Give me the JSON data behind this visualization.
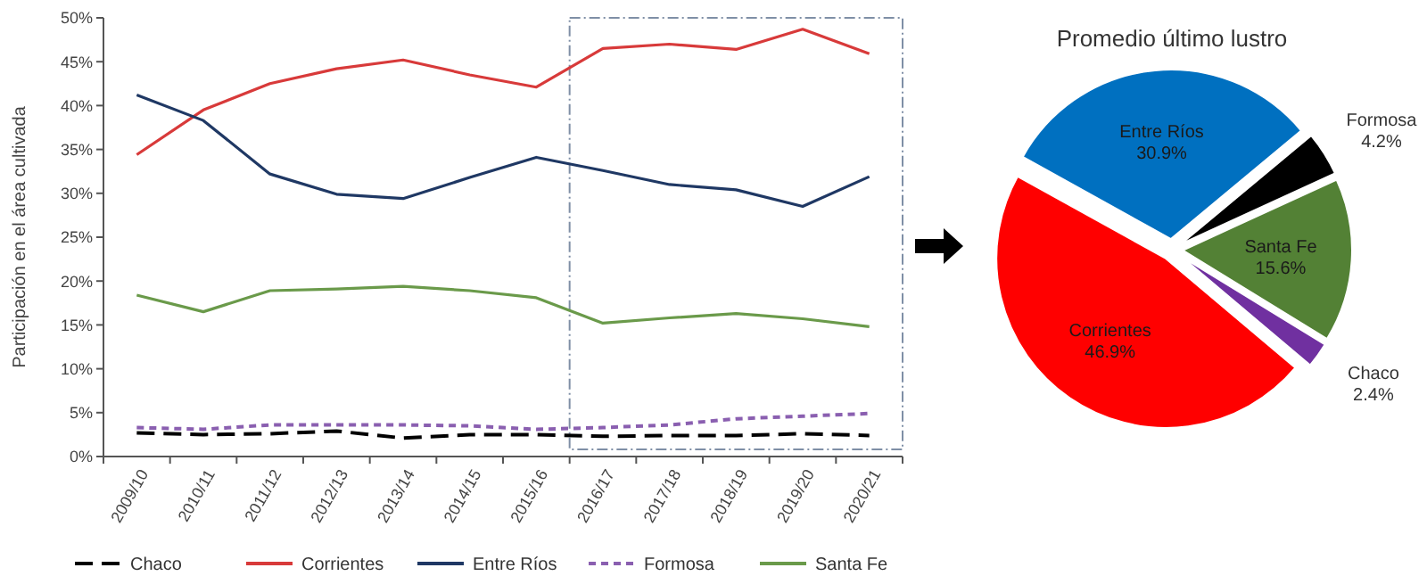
{
  "chart_data": [
    {
      "type": "line",
      "ylabel": "Participación en el área cultivada",
      "categories": [
        "2009/10",
        "2010/11",
        "2011/12",
        "2012/13",
        "2013/14",
        "2014/15",
        "2015/16",
        "2016/17",
        "2017/18",
        "2018/19",
        "2019/20",
        "2020/21"
      ],
      "series": [
        {
          "name": "Chaco",
          "color": "#000000",
          "line_style": "dashed",
          "values": [
            2.7,
            2.5,
            2.6,
            2.9,
            2.1,
            2.5,
            2.5,
            2.3,
            2.4,
            2.4,
            2.6,
            2.4
          ]
        },
        {
          "name": "Corrientes",
          "color": "#d83a3a",
          "values": [
            34.4,
            39.5,
            42.5,
            44.2,
            45.2,
            43.5,
            42.1,
            46.5,
            47.0,
            46.4,
            48.7,
            45.9
          ]
        },
        {
          "name": "Entre Ríos",
          "color": "#1f3864",
          "values": [
            41.2,
            38.3,
            32.2,
            29.9,
            29.4,
            31.8,
            34.1,
            32.6,
            31.0,
            30.4,
            28.5,
            31.9
          ]
        },
        {
          "name": "Formosa",
          "color": "#8a5fb0",
          "line_style": "dotted",
          "values": [
            3.3,
            3.1,
            3.6,
            3.6,
            3.6,
            3.5,
            3.1,
            3.3,
            3.6,
            4.3,
            4.6,
            4.9
          ]
        },
        {
          "name": "Santa Fe",
          "color": "#6a9a4a",
          "values": [
            18.4,
            16.5,
            18.9,
            19.1,
            19.4,
            18.9,
            18.1,
            15.2,
            15.8,
            16.3,
            15.7,
            14.8
          ]
        }
      ],
      "ylim": [
        0,
        50
      ],
      "yticks": [
        {
          "value": 0,
          "label": "0%"
        },
        {
          "value": 5,
          "label": "5%"
        },
        {
          "value": 10,
          "label": "10%"
        },
        {
          "value": 15,
          "label": "15%"
        },
        {
          "value": 20,
          "label": "20%"
        },
        {
          "value": 25,
          "label": "25%"
        },
        {
          "value": 30,
          "label": "30%"
        },
        {
          "value": 35,
          "label": "35%"
        },
        {
          "value": 40,
          "label": "40%"
        },
        {
          "value": 45,
          "label": "45%"
        },
        {
          "value": 50,
          "label": "50%"
        }
      ],
      "legend": "bottom",
      "grid": false
    },
    {
      "type": "pie",
      "title": "Promedio último lustro",
      "categories": [
        "Entre Ríos",
        "Formosa",
        "Santa Fe",
        "Chaco",
        "Corrientes"
      ],
      "values": [
        30.9,
        4.2,
        15.6,
        2.4,
        46.9
      ],
      "colors": [
        "#0070c0",
        "#000000",
        "#538135",
        "#7030a0",
        "#ff0000"
      ],
      "value_labels": [
        "30.9%",
        "4.2%",
        "15.6%",
        "2.4%",
        "46.9%"
      ]
    }
  ]
}
